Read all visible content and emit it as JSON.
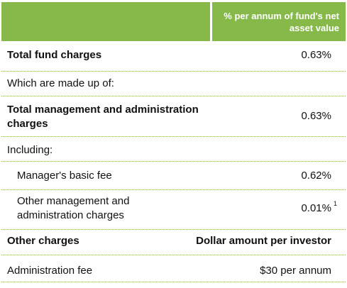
{
  "header": {
    "right_label": "% per annum of fund's net asset value"
  },
  "rows": [
    {
      "label": "Total fund charges",
      "value": "0.63%",
      "note": ""
    },
    {
      "label": "Which are made up of:",
      "value": "",
      "note": ""
    },
    {
      "label": "Total management and administration charges",
      "value": "0.63%",
      "note": ""
    },
    {
      "label": "Including:",
      "value": "",
      "note": ""
    },
    {
      "label": "Manager's basic fee",
      "value": "0.62%",
      "note": ""
    },
    {
      "label": "Other management and administration charges",
      "value": "0.01%",
      "note": "1"
    },
    {
      "label": "Other charges",
      "value": "Dollar amount per investor",
      "note": ""
    },
    {
      "label": "Administration fee",
      "value": "$30 per annum",
      "note": ""
    }
  ],
  "colors": {
    "accent": "#86b94a",
    "header_text": "#ffffff"
  }
}
